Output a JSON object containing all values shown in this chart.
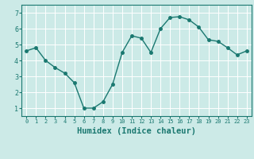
{
  "x": [
    0,
    1,
    2,
    3,
    4,
    5,
    6,
    7,
    8,
    9,
    10,
    11,
    12,
    13,
    14,
    15,
    16,
    17,
    18,
    19,
    20,
    21,
    22,
    23
  ],
  "y": [
    4.6,
    4.8,
    4.0,
    3.55,
    3.2,
    2.6,
    1.0,
    1.0,
    1.4,
    2.5,
    4.5,
    5.55,
    5.4,
    4.5,
    6.0,
    6.7,
    6.75,
    6.55,
    6.1,
    5.3,
    5.2,
    4.8,
    4.35,
    4.6
  ],
  "line_color": "#1a7870",
  "marker": "o",
  "marker_size": 2.5,
  "linewidth": 1.0,
  "xlabel": "Humidex (Indice chaleur)",
  "bg_color": "#cceae7",
  "grid_color": "#ffffff",
  "tick_color": "#1a7870",
  "label_color": "#1a7870",
  "xlim": [
    -0.5,
    23.5
  ],
  "ylim": [
    0.5,
    7.5
  ],
  "yticks": [
    1,
    2,
    3,
    4,
    5,
    6,
    7
  ],
  "xticks": [
    0,
    1,
    2,
    3,
    4,
    5,
    6,
    7,
    8,
    9,
    10,
    11,
    12,
    13,
    14,
    15,
    16,
    17,
    18,
    19,
    20,
    21,
    22,
    23
  ]
}
